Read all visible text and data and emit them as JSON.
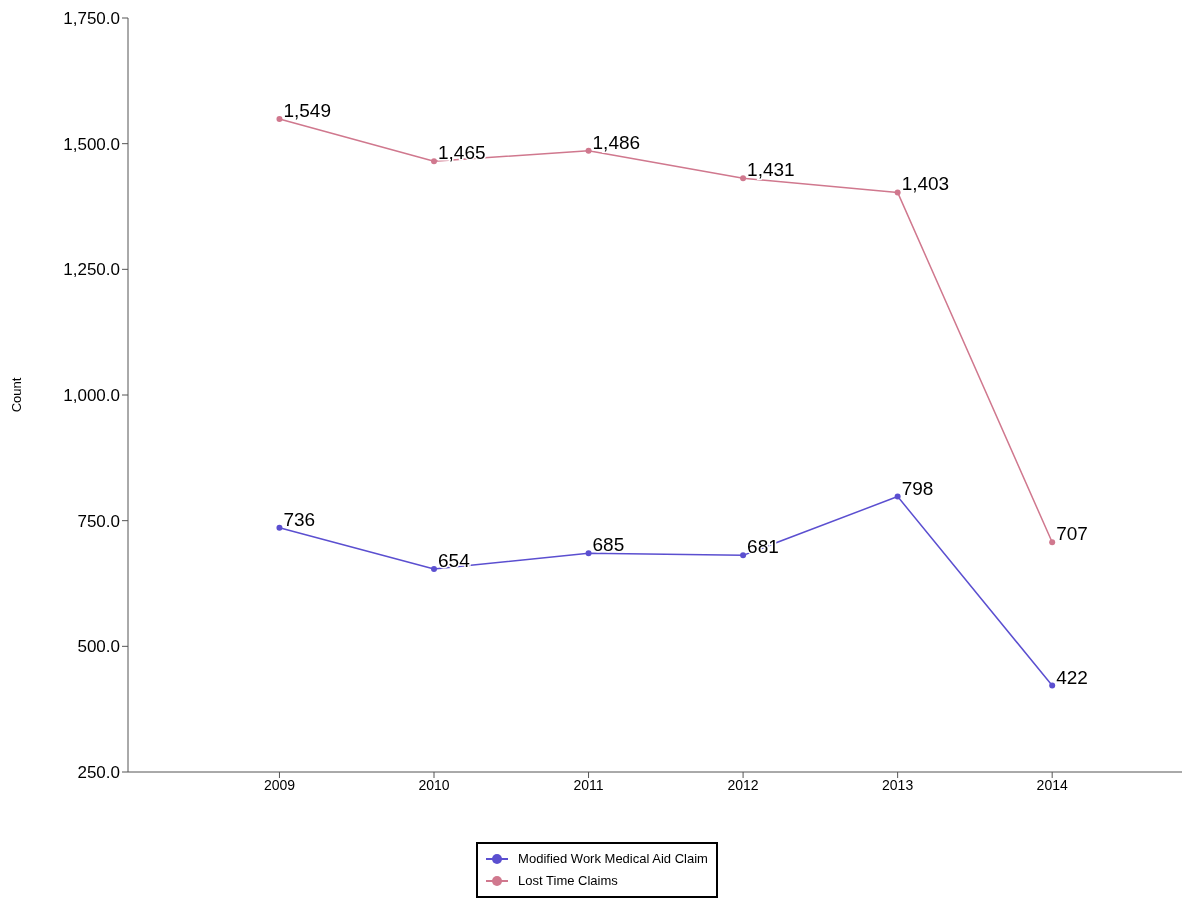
{
  "chart_data": {
    "type": "line",
    "ylabel": "Count",
    "categories": [
      "2009",
      "2010",
      "2011",
      "2012",
      "2013",
      "2014"
    ],
    "series": [
      {
        "name": "Modified Work Medical Aid Claim",
        "color": "#5b4fd0",
        "values": [
          736,
          654,
          685,
          681,
          798,
          422
        ],
        "value_labels": [
          "736",
          "654",
          "685",
          "681",
          "798",
          "422"
        ]
      },
      {
        "name": "Lost Time Claims",
        "color": "#d0788e",
        "values": [
          1549,
          1465,
          1486,
          1431,
          1403,
          707
        ],
        "value_labels": [
          "1,549",
          "1,465",
          "1,486",
          "1,431",
          "1,403",
          "707"
        ]
      }
    ],
    "ylim": [
      250,
      1750
    ],
    "yticks": [
      {
        "value": 250,
        "label": "250.0"
      },
      {
        "value": 500,
        "label": "500.0"
      },
      {
        "value": 750,
        "label": "750.0"
      },
      {
        "value": 1000,
        "label": "1,000.0"
      },
      {
        "value": 1250,
        "label": "1,250.0"
      },
      {
        "value": 1500,
        "label": "1,500.0"
      },
      {
        "value": 1750,
        "label": "1,750.0"
      }
    ],
    "marker": "circle",
    "legend": "bottom",
    "grid": false
  }
}
